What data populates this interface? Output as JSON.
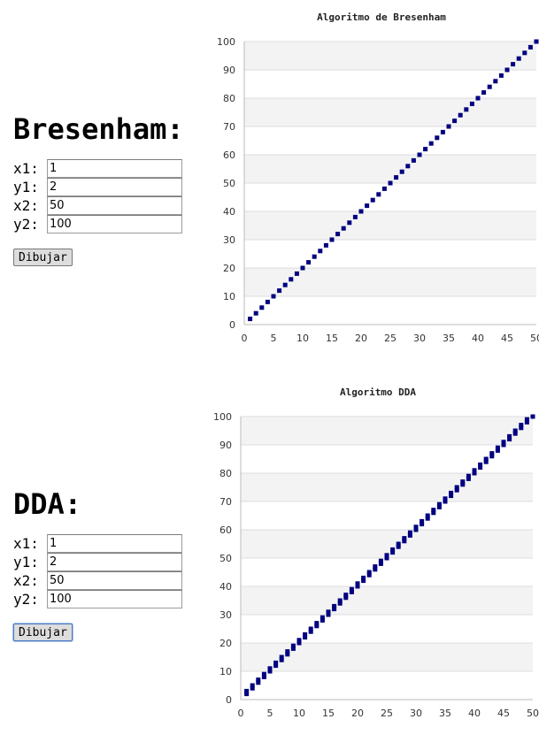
{
  "sections": [
    {
      "id": "bresenham",
      "heading": "Bresenham:",
      "fields": [
        {
          "label": "x1:",
          "value": "1"
        },
        {
          "label": "y1:",
          "value": "2"
        },
        {
          "label": "x2:",
          "value": "50"
        },
        {
          "label": "y2:",
          "value": "100"
        }
      ],
      "button_label": "Dibujar"
    },
    {
      "id": "dda",
      "heading": "DDA:",
      "fields": [
        {
          "label": "x1:",
          "value": "1"
        },
        {
          "label": "y1:",
          "value": "2"
        },
        {
          "label": "x2:",
          "value": "50"
        },
        {
          "label": "y2:",
          "value": "100"
        }
      ],
      "button_label": "Dibujar"
    }
  ],
  "chart_data": [
    {
      "type": "scatter",
      "title": "Algoritmo de Bresenham",
      "xlabel": "",
      "ylabel": "",
      "xlim": [
        0,
        50
      ],
      "ylim": [
        0,
        100
      ],
      "xticks": [
        0,
        5,
        10,
        15,
        20,
        25,
        30,
        35,
        40,
        45,
        50
      ],
      "yticks": [
        0,
        10,
        20,
        30,
        40,
        50,
        60,
        70,
        80,
        90,
        100
      ],
      "grid": "horizontal bands",
      "marker_color": "#000080",
      "series": [
        {
          "x": [
            1,
            2,
            3,
            4,
            5,
            6,
            7,
            8,
            9,
            10,
            11,
            12,
            13,
            14,
            15,
            16,
            17,
            18,
            19,
            20,
            21,
            22,
            23,
            24,
            25,
            26,
            27,
            28,
            29,
            30,
            31,
            32,
            33,
            34,
            35,
            36,
            37,
            38,
            39,
            40,
            41,
            42,
            43,
            44,
            45,
            46,
            47,
            48,
            49,
            50
          ],
          "y": [
            2,
            4,
            6,
            8,
            10,
            12,
            14,
            16,
            18,
            20,
            22,
            24,
            26,
            28,
            30,
            32,
            34,
            36,
            38,
            40,
            42,
            44,
            46,
            48,
            50,
            52,
            54,
            56,
            58,
            60,
            62,
            64,
            66,
            68,
            70,
            72,
            74,
            76,
            78,
            80,
            82,
            84,
            86,
            88,
            90,
            92,
            94,
            96,
            98,
            100
          ]
        }
      ]
    },
    {
      "type": "scatter",
      "title": "Algoritmo DDA",
      "xlabel": "",
      "ylabel": "",
      "xlim": [
        0,
        50
      ],
      "ylim": [
        0,
        100
      ],
      "xticks": [
        0,
        5,
        10,
        15,
        20,
        25,
        30,
        35,
        40,
        45,
        50
      ],
      "yticks": [
        0,
        10,
        20,
        30,
        40,
        50,
        60,
        70,
        80,
        90,
        100
      ],
      "grid": "horizontal bands",
      "marker_color": "#000080",
      "series": [
        {
          "x": [
            1,
            1,
            2,
            2,
            3,
            3,
            4,
            4,
            5,
            5,
            6,
            6,
            7,
            7,
            8,
            8,
            9,
            9,
            10,
            10,
            11,
            11,
            12,
            12,
            13,
            13,
            14,
            14,
            15,
            15,
            16,
            16,
            17,
            17,
            18,
            18,
            19,
            19,
            20,
            20,
            21,
            21,
            22,
            22,
            23,
            23,
            24,
            24,
            25,
            25,
            26,
            26,
            27,
            27,
            28,
            28,
            29,
            29,
            30,
            30,
            31,
            31,
            32,
            32,
            33,
            33,
            34,
            34,
            35,
            35,
            36,
            36,
            37,
            37,
            38,
            38,
            39,
            39,
            40,
            40,
            41,
            41,
            42,
            42,
            43,
            43,
            44,
            44,
            45,
            45,
            46,
            46,
            47,
            47,
            48,
            48,
            49,
            49,
            50
          ],
          "y": [
            2,
            3,
            4,
            5,
            6,
            7,
            8,
            9,
            10,
            11,
            12,
            13,
            14,
            15,
            16,
            17,
            18,
            19,
            20,
            21,
            22,
            23,
            24,
            25,
            26,
            27,
            28,
            29,
            30,
            31,
            32,
            33,
            34,
            35,
            36,
            37,
            38,
            39,
            40,
            41,
            42,
            43,
            44,
            45,
            46,
            47,
            48,
            49,
            50,
            51,
            52,
            53,
            54,
            55,
            56,
            57,
            58,
            59,
            60,
            61,
            62,
            63,
            64,
            65,
            66,
            67,
            68,
            69,
            70,
            71,
            72,
            73,
            74,
            75,
            76,
            77,
            78,
            79,
            80,
            81,
            82,
            83,
            84,
            85,
            86,
            87,
            88,
            89,
            90,
            91,
            92,
            93,
            94,
            95,
            96,
            97,
            98,
            99,
            100
          ]
        }
      ]
    }
  ]
}
